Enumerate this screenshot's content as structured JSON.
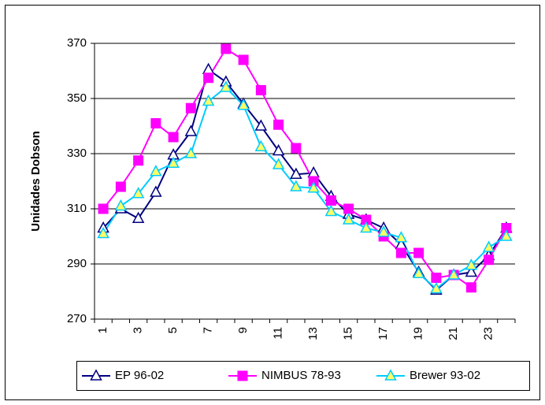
{
  "chart_data": {
    "type": "line",
    "y_label": "Unidades Dobson",
    "categories": [
      1,
      null,
      3,
      null,
      5,
      null,
      7,
      null,
      9,
      null,
      11,
      null,
      13,
      null,
      15,
      null,
      17,
      null,
      19,
      null,
      21,
      null,
      23,
      null
    ],
    "ylim": [
      270,
      370
    ],
    "yticks": [
      270,
      290,
      310,
      330,
      350,
      370
    ],
    "grid": true,
    "legend": "bottom",
    "series": [
      {
        "name": "EP 96-02",
        "color": "#000080",
        "marker": "triangle",
        "marker_fill": "#ffffff",
        "values": [
          303,
          310,
          306.5,
          316,
          329.5,
          338,
          360.5,
          356,
          348,
          340,
          331,
          322.5,
          323,
          314.5,
          308,
          306,
          303,
          297,
          287,
          280.5,
          286,
          287,
          293,
          303
        ]
      },
      {
        "name": "NIMBUS 78-93",
        "color": "#ff00ff",
        "marker": "square",
        "marker_fill": "#ff00ff",
        "values": [
          310,
          318,
          327.5,
          341,
          336,
          346.5,
          357.5,
          368,
          364,
          353,
          340.5,
          332,
          320,
          313,
          310,
          306,
          300,
          294,
          294,
          285,
          286,
          281.5,
          291.5,
          303
        ]
      },
      {
        "name": "Brewer 93-02",
        "color": "#00ccff",
        "marker": "triangle",
        "marker_fill": "#ffff66",
        "values": [
          301,
          311,
          315.5,
          323.5,
          326.5,
          330,
          349,
          354,
          347.5,
          332.5,
          326,
          318,
          317.5,
          309,
          306,
          303,
          301.5,
          299.5,
          286.5,
          281,
          286,
          289.5,
          296,
          300
        ]
      }
    ]
  }
}
